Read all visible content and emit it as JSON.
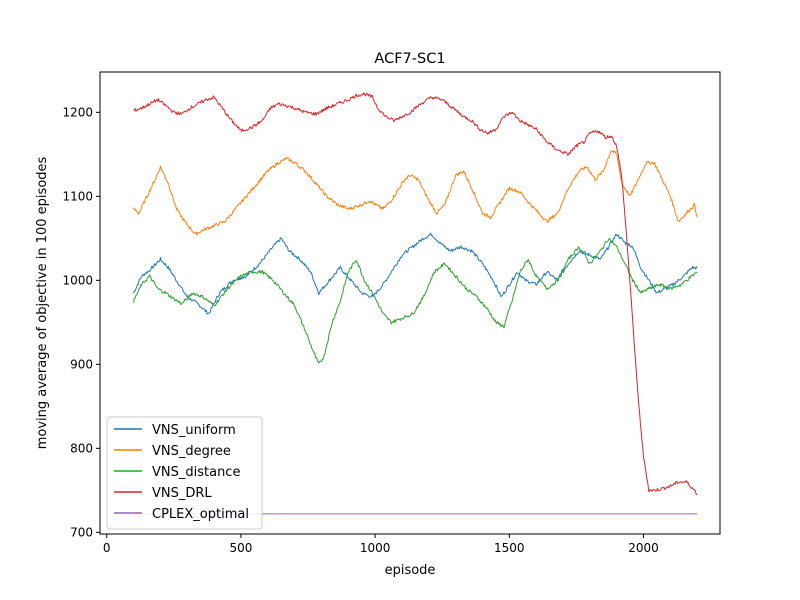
{
  "chart_data": {
    "type": "line",
    "title": "ACF7-SC1",
    "xlabel": "episode",
    "ylabel": "moving average of objective in 100 episodes",
    "xlim": [
      -25,
      2285
    ],
    "ylim": [
      698,
      1248
    ],
    "xticks": [
      0,
      500,
      1000,
      1500,
      2000
    ],
    "yticks": [
      700,
      800,
      900,
      1000,
      1100,
      1200
    ],
    "xtick_labels": [
      "0",
      "500",
      "1000",
      "1500",
      "2000"
    ],
    "ytick_labels": [
      "700",
      "800",
      "900",
      "1000",
      "1100",
      "1200"
    ],
    "grid": false,
    "legend_position": "lower-left",
    "series": [
      {
        "name": "VNS_uniform",
        "color": "#1f77b4",
        "x": [
          100,
          130,
          160,
          200,
          230,
          260,
          300,
          340,
          380,
          420,
          470,
          520,
          570,
          620,
          650,
          680,
          720,
          760,
          790,
          830,
          870,
          910,
          950,
          990,
          1030,
          1070,
          1100,
          1140,
          1180,
          1210,
          1240,
          1280,
          1320,
          1360,
          1400,
          1440,
          1470,
          1500,
          1530,
          1560,
          1600,
          1640,
          1680,
          1720,
          1760,
          1800,
          1840,
          1870,
          1900,
          1930,
          1960,
          1990,
          2020,
          2050,
          2080,
          2110,
          2150,
          2180,
          2200
        ],
        "y": [
          985,
          1005,
          1012,
          1025,
          1015,
          1000,
          980,
          972,
          960,
          985,
          1000,
          1005,
          1020,
          1040,
          1050,
          1035,
          1025,
          1010,
          985,
          1000,
          1015,
          1000,
          985,
          980,
          995,
          1015,
          1030,
          1040,
          1050,
          1055,
          1045,
          1035,
          1040,
          1035,
          1020,
          1000,
          980,
          995,
          1010,
          1000,
          995,
          1010,
          1000,
          1020,
          1035,
          1030,
          1025,
          1040,
          1055,
          1045,
          1040,
          1015,
          1000,
          985,
          990,
          995,
          1005,
          1015,
          1015
        ]
      },
      {
        "name": "VNS_degree",
        "color": "#ff7f0e",
        "x": [
          100,
          120,
          150,
          180,
          200,
          230,
          260,
          290,
          330,
          360,
          400,
          440,
          480,
          520,
          560,
          600,
          640,
          670,
          700,
          740,
          780,
          820,
          860,
          900,
          950,
          980,
          1000,
          1030,
          1060,
          1090,
          1110,
          1130,
          1160,
          1200,
          1230,
          1260,
          1300,
          1330,
          1360,
          1400,
          1430,
          1460,
          1500,
          1540,
          1580,
          1610,
          1640,
          1680,
          1720,
          1760,
          1790,
          1820,
          1850,
          1880,
          1900,
          1920,
          1950,
          1980,
          2010,
          2040,
          2070,
          2100,
          2130,
          2160,
          2190,
          2200
        ],
        "y": [
          1085,
          1080,
          1100,
          1120,
          1135,
          1115,
          1085,
          1070,
          1055,
          1060,
          1065,
          1070,
          1085,
          1100,
          1115,
          1130,
          1140,
          1145,
          1140,
          1130,
          1115,
          1100,
          1090,
          1085,
          1090,
          1095,
          1090,
          1085,
          1095,
          1110,
          1120,
          1125,
          1120,
          1095,
          1080,
          1090,
          1125,
          1130,
          1110,
          1080,
          1075,
          1090,
          1110,
          1105,
          1090,
          1080,
          1070,
          1080,
          1110,
          1130,
          1135,
          1120,
          1130,
          1155,
          1150,
          1115,
          1100,
          1120,
          1140,
          1140,
          1120,
          1100,
          1070,
          1080,
          1090,
          1075
        ]
      },
      {
        "name": "VNS_distance",
        "color": "#2ca02c",
        "x": [
          100,
          130,
          160,
          190,
          220,
          250,
          280,
          320,
          360,
          400,
          450,
          500,
          540,
          580,
          620,
          660,
          700,
          740,
          770,
          790,
          810,
          840,
          870,
          900,
          930,
          960,
          990,
          1030,
          1060,
          1100,
          1140,
          1180,
          1220,
          1260,
          1300,
          1340,
          1380,
          1420,
          1450,
          1480,
          1510,
          1540,
          1570,
          1600,
          1640,
          1680,
          1720,
          1760,
          1800,
          1840,
          1870,
          1900,
          1930,
          1960,
          1990,
          2020,
          2060,
          2100,
          2140,
          2180,
          2200
        ],
        "y": [
          975,
          995,
          1005,
          990,
          985,
          978,
          972,
          985,
          980,
          970,
          990,
          1005,
          1010,
          1010,
          1000,
          985,
          970,
          940,
          915,
          900,
          910,
          950,
          975,
          1010,
          1025,
          1000,
          985,
          960,
          950,
          955,
          960,
          980,
          1010,
          1020,
          1005,
          990,
          980,
          965,
          950,
          945,
          975,
          1010,
          1025,
          1005,
          990,
          1000,
          1025,
          1040,
          1020,
          1035,
          1050,
          1040,
          1020,
          1000,
          985,
          990,
          995,
          990,
          995,
          1005,
          1010
        ]
      },
      {
        "name": "VNS_DRL",
        "color": "#d62728",
        "x": [
          100,
          130,
          160,
          190,
          220,
          250,
          280,
          310,
          340,
          370,
          400,
          430,
          460,
          500,
          540,
          580,
          610,
          640,
          670,
          700,
          740,
          780,
          820,
          860,
          900,
          930,
          960,
          990,
          1010,
          1040,
          1070,
          1100,
          1130,
          1170,
          1210,
          1250,
          1290,
          1330,
          1360,
          1390,
          1420,
          1450,
          1480,
          1510,
          1540,
          1570,
          1600,
          1640,
          1680,
          1720,
          1750,
          1780,
          1800,
          1830,
          1860,
          1880,
          1900,
          1920,
          1940,
          1960,
          1980,
          2000,
          2020,
          2040,
          2070,
          2100,
          2130,
          2160,
          2190,
          2200
        ],
        "y": [
          1202,
          1205,
          1210,
          1215,
          1208,
          1200,
          1198,
          1205,
          1210,
          1215,
          1218,
          1205,
          1192,
          1178,
          1182,
          1190,
          1205,
          1210,
          1208,
          1205,
          1200,
          1198,
          1205,
          1210,
          1215,
          1220,
          1222,
          1218,
          1205,
          1195,
          1190,
          1195,
          1200,
          1210,
          1218,
          1215,
          1205,
          1195,
          1190,
          1180,
          1175,
          1180,
          1195,
          1200,
          1190,
          1185,
          1180,
          1165,
          1155,
          1150,
          1160,
          1165,
          1175,
          1178,
          1170,
          1172,
          1160,
          1120,
          1040,
          950,
          860,
          790,
          750,
          750,
          752,
          755,
          760,
          760,
          750,
          745
        ]
      },
      {
        "name": "CPLEX_optimal",
        "color": "#9467bd",
        "x": [
          100,
          2200
        ],
        "y": [
          722,
          722
        ]
      }
    ]
  }
}
